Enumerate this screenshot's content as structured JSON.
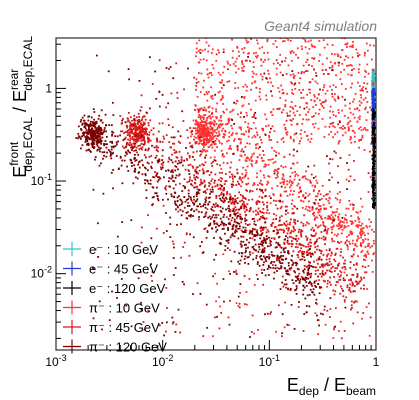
{
  "chart_data": {
    "type": "scatter",
    "annotation": "Geant4 simulation",
    "xlabel": {
      "main": "E",
      "sub1": "dep",
      "sep": " / E",
      "sub2": "beam"
    },
    "ylabel": {
      "main": "E",
      "sup1": "front",
      "sub1": "dep,ECAL",
      "sep": " / E",
      "sup2": "rear",
      "sub2": "dep,ECAL"
    },
    "xscale": "log",
    "yscale": "log",
    "xlim": [
      0.001,
      1.0
    ],
    "ylim": [
      0.0015,
      3.5
    ],
    "xticks": [
      {
        "value": 0.001,
        "base": "10",
        "exp": "-3"
      },
      {
        "value": 0.01,
        "base": "10",
        "exp": "-2"
      },
      {
        "value": 0.1,
        "base": "10",
        "exp": "-1"
      },
      {
        "value": 1,
        "base": "1",
        "exp": ""
      }
    ],
    "yticks": [
      {
        "value": 0.01,
        "base": "10",
        "exp": "-2"
      },
      {
        "value": 0.1,
        "base": "10",
        "exp": "-1"
      },
      {
        "value": 1,
        "base": "1",
        "exp": ""
      }
    ],
    "legend_position": "bottom-left",
    "series": [
      {
        "name": "e⁻ : 10 GeV",
        "color": "#33c4c4",
        "kind": "electron",
        "x_center": 0.94,
        "y_range": [
          0.6,
          1.6
        ]
      },
      {
        "name": "e⁻ : 45 GeV",
        "color": "#1f3fd8",
        "kind": "electron",
        "x_center": 0.945,
        "y_range": [
          0.25,
          1.0
        ]
      },
      {
        "name": "e⁻ : 120 GeV",
        "color": "#000000",
        "kind": "electron",
        "x_center": 0.95,
        "y_range": [
          0.05,
          0.6
        ]
      },
      {
        "name": "π⁻ : 10 GeV",
        "color": "#ff3030",
        "kind": "pion",
        "mip_x": 0.025,
        "mip_y": 0.34,
        "slope": -1.0
      },
      {
        "name": "π⁻ : 45 GeV",
        "color": "#d81818",
        "kind": "pion",
        "mip_x": 0.0058,
        "mip_y": 0.33,
        "slope": -1.0
      },
      {
        "name": "π⁻ : 120 GeV",
        "color": "#7a0000",
        "kind": "pion",
        "mip_x": 0.0022,
        "mip_y": 0.33,
        "slope": -1.0
      }
    ]
  }
}
